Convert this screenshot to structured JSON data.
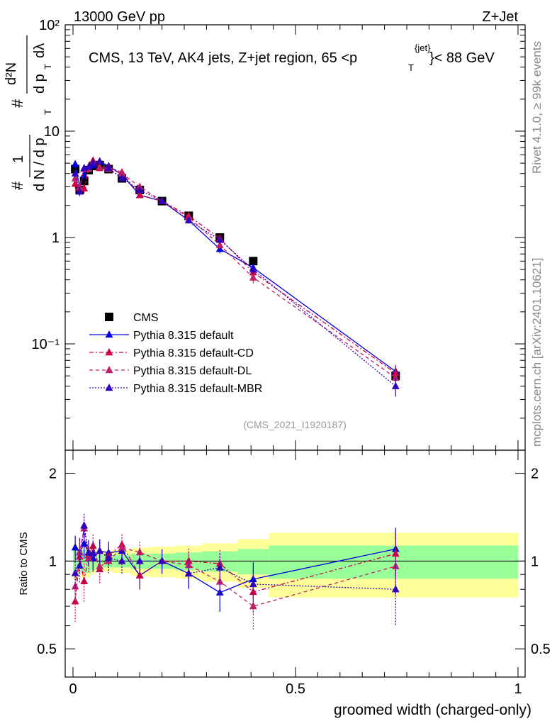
{
  "header": {
    "left": "13000 GeV pp",
    "right": "Z+Jet"
  },
  "side_labels": {
    "rivet": "Rivet 4.1.0, ≥ 99k events",
    "source": "mcplots.cern.ch [arXiv:2401.10621]"
  },
  "chart_data": {
    "type": "scatter",
    "title": "CMS, 13 TeV, AK4 jets, Z+jet region, 65 <",
    "title_pt": "p",
    "title_sup": "{jet}",
    "title_sub": "T",
    "title_end": "}< 88 GeV",
    "analysis_id": "(CMS_2021_I1920187)",
    "xlabel": "groomed width (charged-only)",
    "ylabel_parts": {
      "frac1": "1",
      "den1": "d N / d p",
      "hash": "#",
      "num2": "d²N",
      "den2a": "d p",
      "den2b": "dλ",
      "T": "T"
    },
    "ratio_ylabel": "Ratio to CMS",
    "xlim": [
      0,
      1
    ],
    "ylim": [
      0.01,
      100
    ],
    "ratio_ylim": [
      0.4,
      2.4
    ],
    "x_ticks": [
      0,
      0.5,
      1
    ],
    "x_tick_labels": [
      "0",
      "0.5",
      "1"
    ],
    "y_tick_labels": [
      "10⁻¹",
      "1",
      "10",
      "10²"
    ],
    "ratio_tick_labels": [
      "0.5",
      "1",
      "2"
    ],
    "x": [
      0.005,
      0.015,
      0.025,
      0.035,
      0.045,
      0.06,
      0.08,
      0.11,
      0.15,
      0.2,
      0.26,
      0.33,
      0.405,
      0.725
    ],
    "bin_edges": [
      0,
      0.01,
      0.02,
      0.03,
      0.04,
      0.05,
      0.07,
      0.09,
      0.13,
      0.17,
      0.23,
      0.29,
      0.37,
      0.44,
      1.0
    ],
    "green_band": [
      0.1,
      0.09,
      0.09,
      0.09,
      0.07,
      0.05,
      0.05,
      0.05,
      0.06,
      0.06,
      0.07,
      0.08,
      0.1,
      0.13
    ],
    "yellow_band": [
      0.14,
      0.12,
      0.12,
      0.12,
      0.1,
      0.08,
      0.08,
      0.09,
      0.11,
      0.12,
      0.13,
      0.15,
      0.19,
      0.25
    ],
    "series": [
      {
        "name": "CMS",
        "color": "#000000",
        "style": "data",
        "values": [
          4.4,
          2.8,
          3.4,
          4.3,
          4.7,
          4.8,
          4.4,
          3.6,
          2.8,
          2.2,
          1.6,
          1.0,
          0.6,
          0.05
        ]
      },
      {
        "name": "Pythia 8.315 default",
        "color": "#0000dd",
        "style": "solid",
        "values": [
          4.9,
          3.0,
          3.9,
          4.6,
          4.8,
          5.2,
          4.7,
          3.9,
          2.5,
          2.2,
          1.45,
          0.78,
          0.52,
          0.055
        ],
        "err": [
          0.3,
          0.25,
          0.3,
          0.3,
          0.3,
          0.3,
          0.25,
          0.2,
          0.15,
          0.12,
          0.1,
          0.07,
          0.05,
          0.008
        ]
      },
      {
        "name": "Pythia 8.315 default-CD",
        "color": "#cc0044",
        "style": "dashdot",
        "values": [
          3.2,
          2.9,
          2.9,
          4.5,
          5.3,
          4.5,
          4.6,
          4.1,
          2.5,
          2.2,
          1.6,
          0.98,
          0.47,
          0.053
        ],
        "err": [
          0.3,
          0.25,
          0.3,
          0.3,
          0.3,
          0.3,
          0.25,
          0.2,
          0.15,
          0.12,
          0.1,
          0.07,
          0.05,
          0.008
        ]
      },
      {
        "name": "Pythia 8.315 default-DL",
        "color": "#c0206a",
        "style": "dashed",
        "values": [
          3.6,
          3.0,
          4.4,
          4.4,
          5.0,
          4.6,
          4.4,
          4.0,
          3.0,
          2.2,
          1.55,
          0.85,
          0.42,
          0.048
        ],
        "err": [
          0.3,
          0.25,
          0.3,
          0.3,
          0.3,
          0.3,
          0.25,
          0.2,
          0.15,
          0.12,
          0.1,
          0.07,
          0.05,
          0.008
        ]
      },
      {
        "name": "Pythia 8.315 default-MBR",
        "color": "#3300bb",
        "style": "dotted",
        "values": [
          4.0,
          2.7,
          4.5,
          4.6,
          5.0,
          5.2,
          4.5,
          3.6,
          2.8,
          2.2,
          1.45,
          0.95,
          0.5,
          0.04
        ],
        "err": [
          0.3,
          0.25,
          0.3,
          0.3,
          0.3,
          0.3,
          0.25,
          0.2,
          0.15,
          0.12,
          0.1,
          0.07,
          0.05,
          0.008
        ]
      }
    ],
    "legend_position": "left-middle"
  }
}
